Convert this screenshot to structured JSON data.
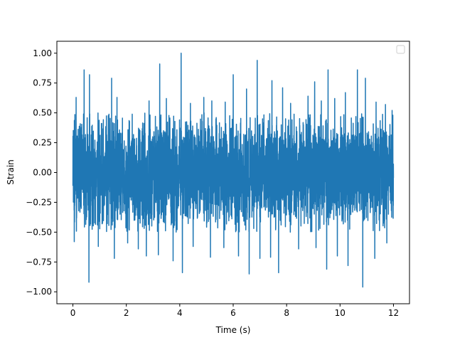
{
  "colors": {
    "series": "#1f77b4",
    "axes": "#000000",
    "background": "#ffffff",
    "legend_border": "#cccccc"
  },
  "chart_data": {
    "type": "line",
    "title": "",
    "xlabel": "Time (s)",
    "ylabel": "Strain",
    "xlim": [
      -0.6,
      12.6
    ],
    "ylim": [
      -1.1,
      1.1
    ],
    "x_ticks": [
      0,
      2,
      4,
      6,
      8,
      10,
      12
    ],
    "x_tick_labels": [
      "0",
      "2",
      "4",
      "6",
      "8",
      "10",
      "12"
    ],
    "y_ticks": [
      -1.0,
      -0.75,
      -0.5,
      -0.25,
      0.0,
      0.25,
      0.5,
      0.75,
      1.0
    ],
    "y_tick_labels": [
      "−1.00",
      "−0.75",
      "−0.50",
      "−0.25",
      "0.00",
      "0.25",
      "0.50",
      "0.75",
      "1.00"
    ],
    "grid": false,
    "legend": {
      "placement": "upper right",
      "entries": []
    },
    "series": [
      {
        "x_start": 0.0,
        "x_end": 12.0,
        "typical_range": [
          -0.5,
          0.5
        ],
        "max": 1.0,
        "min": -0.96,
        "positive_peaks": [
          {
            "x": 0.05,
            "y": 0.6
          },
          {
            "x": 0.12,
            "y": 0.63
          },
          {
            "x": 0.42,
            "y": 0.86
          },
          {
            "x": 0.62,
            "y": 0.82
          },
          {
            "x": 0.95,
            "y": 0.67
          },
          {
            "x": 1.45,
            "y": 0.79
          },
          {
            "x": 1.65,
            "y": 0.63
          },
          {
            "x": 2.05,
            "y": 0.58
          },
          {
            "x": 2.45,
            "y": 0.62
          },
          {
            "x": 2.85,
            "y": 0.6
          },
          {
            "x": 3.25,
            "y": 0.91
          },
          {
            "x": 3.5,
            "y": 0.62
          },
          {
            "x": 3.75,
            "y": 0.73
          },
          {
            "x": 4.05,
            "y": 1.0
          },
          {
            "x": 4.4,
            "y": 0.58
          },
          {
            "x": 4.9,
            "y": 0.63
          },
          {
            "x": 5.2,
            "y": 0.6
          },
          {
            "x": 5.7,
            "y": 0.59
          },
          {
            "x": 6.0,
            "y": 0.82
          },
          {
            "x": 6.5,
            "y": 0.7
          },
          {
            "x": 6.9,
            "y": 0.94
          },
          {
            "x": 7.45,
            "y": 0.77
          },
          {
            "x": 7.85,
            "y": 0.71
          },
          {
            "x": 8.15,
            "y": 0.58
          },
          {
            "x": 8.8,
            "y": 0.64
          },
          {
            "x": 9.05,
            "y": 0.76
          },
          {
            "x": 9.3,
            "y": 0.6
          },
          {
            "x": 9.55,
            "y": 0.86
          },
          {
            "x": 9.8,
            "y": 0.62
          },
          {
            "x": 10.2,
            "y": 0.67
          },
          {
            "x": 10.65,
            "y": 0.86
          },
          {
            "x": 10.95,
            "y": 0.79
          },
          {
            "x": 11.35,
            "y": 0.59
          },
          {
            "x": 11.7,
            "y": 0.57
          },
          {
            "x": 11.95,
            "y": 0.52
          }
        ],
        "negative_peaks": [
          {
            "x": 0.05,
            "y": -0.58
          },
          {
            "x": 0.6,
            "y": -0.92
          },
          {
            "x": 0.95,
            "y": -0.62
          },
          {
            "x": 1.55,
            "y": -0.72
          },
          {
            "x": 2.05,
            "y": -0.59
          },
          {
            "x": 2.45,
            "y": -0.64
          },
          {
            "x": 2.75,
            "y": -0.7
          },
          {
            "x": 3.2,
            "y": -0.69
          },
          {
            "x": 3.75,
            "y": -0.74
          },
          {
            "x": 4.1,
            "y": -0.84
          },
          {
            "x": 4.5,
            "y": -0.62
          },
          {
            "x": 5.15,
            "y": -0.71
          },
          {
            "x": 5.65,
            "y": -0.63
          },
          {
            "x": 6.2,
            "y": -0.7
          },
          {
            "x": 6.6,
            "y": -0.85
          },
          {
            "x": 7.0,
            "y": -0.72
          },
          {
            "x": 7.4,
            "y": -0.71
          },
          {
            "x": 7.7,
            "y": -0.84
          },
          {
            "x": 8.45,
            "y": -0.64
          },
          {
            "x": 9.1,
            "y": -0.63
          },
          {
            "x": 9.5,
            "y": -0.81
          },
          {
            "x": 9.9,
            "y": -0.7
          },
          {
            "x": 10.3,
            "y": -0.78
          },
          {
            "x": 10.85,
            "y": -0.96
          },
          {
            "x": 11.3,
            "y": -0.72
          },
          {
            "x": 11.75,
            "y": -0.59
          }
        ]
      }
    ]
  }
}
